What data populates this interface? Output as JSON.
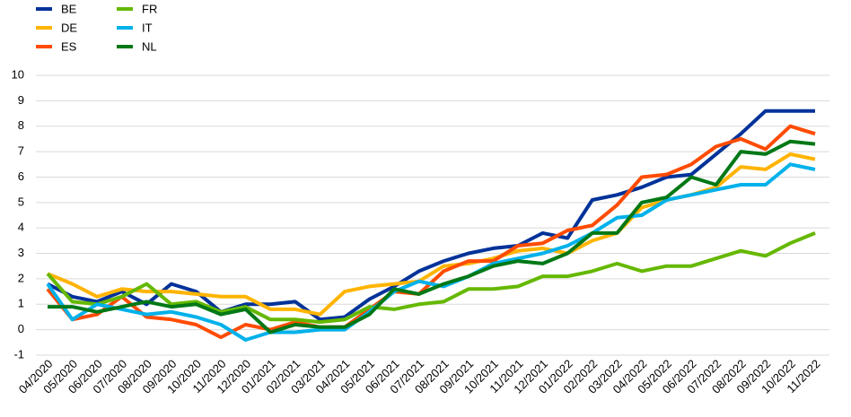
{
  "chart_data": {
    "type": "line",
    "categories": [
      "04/2020",
      "05/2020",
      "06/2020",
      "07/2020",
      "08/2020",
      "09/2020",
      "10/2020",
      "11/2020",
      "12/2020",
      "01/2021",
      "02/2021",
      "03/2021",
      "04/2021",
      "05/2021",
      "06/2021",
      "07/2021",
      "08/2021",
      "09/2021",
      "10/2021",
      "11/2021",
      "12/2021",
      "01/2022",
      "02/2022",
      "03/2022",
      "04/2022",
      "05/2022",
      "06/2022",
      "07/2022",
      "08/2022",
      "09/2022",
      "10/2022",
      "11/2022"
    ],
    "series": [
      {
        "name": "BE",
        "color": "#003299",
        "values": [
          1.8,
          1.3,
          1.1,
          1.5,
          1.0,
          1.8,
          1.5,
          0.7,
          1.0,
          1.0,
          1.1,
          0.4,
          0.5,
          1.2,
          1.7,
          2.3,
          2.7,
          3.0,
          3.2,
          3.3,
          3.8,
          3.6,
          5.1,
          5.3,
          5.6,
          6.0,
          6.1,
          6.9,
          7.7,
          8.6,
          8.6,
          8.6
        ]
      },
      {
        "name": "DE",
        "color": "#ffb400",
        "values": [
          2.2,
          1.8,
          1.3,
          1.6,
          1.5,
          1.5,
          1.4,
          1.3,
          1.3,
          0.8,
          0.8,
          0.6,
          1.5,
          1.7,
          1.8,
          1.9,
          2.5,
          2.6,
          2.8,
          3.1,
          3.2,
          3.0,
          3.5,
          3.8,
          4.8,
          5.1,
          5.3,
          5.6,
          6.4,
          6.3,
          6.9,
          6.7
        ]
      },
      {
        "name": "ES",
        "color": "#ff4b00",
        "values": [
          1.6,
          0.4,
          0.6,
          1.3,
          0.5,
          0.4,
          0.2,
          -0.3,
          0.2,
          0.0,
          0.3,
          0.1,
          0.1,
          0.8,
          1.5,
          1.4,
          2.3,
          2.7,
          2.7,
          3.3,
          3.4,
          3.9,
          4.1,
          4.9,
          6.0,
          6.1,
          6.5,
          7.2,
          7.5,
          7.1,
          8.0,
          7.7
        ]
      },
      {
        "name": "FR",
        "color": "#65b800",
        "values": [
          2.2,
          1.1,
          1.0,
          1.3,
          1.8,
          1.0,
          1.1,
          0.7,
          0.9,
          0.4,
          0.4,
          0.3,
          0.4,
          0.9,
          0.8,
          1.0,
          1.1,
          1.6,
          1.6,
          1.7,
          2.1,
          2.1,
          2.3,
          2.6,
          2.3,
          2.5,
          2.5,
          2.8,
          3.1,
          2.9,
          3.4,
          3.8
        ]
      },
      {
        "name": "IT",
        "color": "#00b1ea",
        "values": [
          1.8,
          0.4,
          1.0,
          0.8,
          0.6,
          0.7,
          0.5,
          0.2,
          -0.4,
          -0.1,
          -0.1,
          0.0,
          0.0,
          0.7,
          1.5,
          1.9,
          1.7,
          2.1,
          2.6,
          2.8,
          3.0,
          3.3,
          3.8,
          4.4,
          4.5,
          5.1,
          5.3,
          5.5,
          5.7,
          5.7,
          6.5,
          6.3
        ]
      },
      {
        "name": "NL",
        "color": "#007816",
        "values": [
          0.9,
          0.9,
          0.7,
          0.9,
          1.1,
          0.9,
          1.0,
          0.6,
          0.8,
          -0.1,
          0.2,
          0.1,
          0.1,
          0.6,
          1.6,
          1.4,
          1.8,
          2.1,
          2.5,
          2.7,
          2.6,
          3.0,
          3.8,
          3.8,
          5.0,
          5.2,
          6.0,
          5.7,
          7.0,
          6.9,
          7.4,
          7.3
        ]
      }
    ],
    "ylim": [
      -1,
      10
    ],
    "yticks": [
      -1,
      0,
      1,
      2,
      3,
      4,
      5,
      6,
      7,
      8,
      9,
      10
    ],
    "grid": true
  }
}
